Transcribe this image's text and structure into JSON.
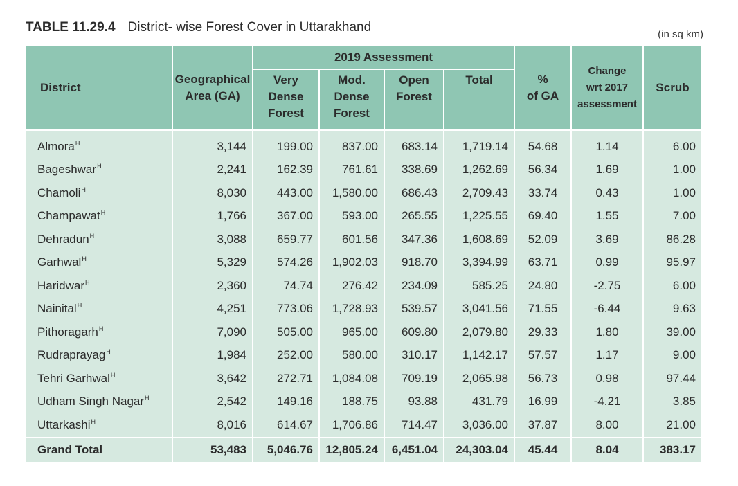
{
  "caption": {
    "number": "TABLE 11.29.4",
    "title": "District- wise Forest Cover in Uttarakhand",
    "unit": "(in sq km)"
  },
  "headers": {
    "district": "District",
    "ga_line1": "Geographical",
    "ga_line2": "Area (GA)",
    "assessment_group": "2019 Assessment",
    "vdf": [
      "Very",
      "Dense",
      "Forest"
    ],
    "mdf": [
      "Mod.",
      "Dense",
      "Forest"
    ],
    "of": [
      "Open",
      "Forest"
    ],
    "total": "Total",
    "pct": [
      "%",
      "of GA"
    ],
    "change": [
      "Change",
      "wrt 2017",
      "assessment"
    ],
    "scrub": "Scrub"
  },
  "rows": [
    {
      "district": "Almora",
      "mark": "H",
      "ga": "3,144",
      "vdf": "199.00",
      "mdf": "837.00",
      "of": "683.14",
      "total": "1,719.14",
      "pct": "54.68",
      "change": "1.14",
      "scrub": "6.00"
    },
    {
      "district": "Bageshwar",
      "mark": "H",
      "ga": "2,241",
      "vdf": "162.39",
      "mdf": "761.61",
      "of": "338.69",
      "total": "1,262.69",
      "pct": "56.34",
      "change": "1.69",
      "scrub": "1.00"
    },
    {
      "district": "Chamoli",
      "mark": "H",
      "ga": "8,030",
      "vdf": "443.00",
      "mdf": "1,580.00",
      "of": "686.43",
      "total": "2,709.43",
      "pct": "33.74",
      "change": "0.43",
      "scrub": "1.00"
    },
    {
      "district": "Champawat",
      "mark": "H",
      "ga": "1,766",
      "vdf": "367.00",
      "mdf": "593.00",
      "of": "265.55",
      "total": "1,225.55",
      "pct": "69.40",
      "change": "1.55",
      "scrub": "7.00"
    },
    {
      "district": "Dehradun",
      "mark": "H",
      "ga": "3,088",
      "vdf": "659.77",
      "mdf": "601.56",
      "of": "347.36",
      "total": "1,608.69",
      "pct": "52.09",
      "change": "3.69",
      "scrub": "86.28"
    },
    {
      "district": "Garhwal",
      "mark": "H",
      "ga": "5,329",
      "vdf": "574.26",
      "mdf": "1,902.03",
      "of": "918.70",
      "total": "3,394.99",
      "pct": "63.71",
      "change": "0.99",
      "scrub": "95.97"
    },
    {
      "district": "Haridwar",
      "mark": "H",
      "ga": "2,360",
      "vdf": "74.74",
      "mdf": "276.42",
      "of": "234.09",
      "total": "585.25",
      "pct": "24.80",
      "change": "-2.75",
      "scrub": "6.00"
    },
    {
      "district": "Nainital",
      "mark": "H",
      "ga": "4,251",
      "vdf": "773.06",
      "mdf": "1,728.93",
      "of": "539.57",
      "total": "3,041.56",
      "pct": "71.55",
      "change": "-6.44",
      "scrub": "9.63"
    },
    {
      "district": "Pithoragarh",
      "mark": "H",
      "ga": "7,090",
      "vdf": "505.00",
      "mdf": "965.00",
      "of": "609.80",
      "total": "2,079.80",
      "pct": "29.33",
      "change": "1.80",
      "scrub": "39.00"
    },
    {
      "district": "Rudraprayag",
      "mark": "H",
      "ga": "1,984",
      "vdf": "252.00",
      "mdf": "580.00",
      "of": "310.17",
      "total": "1,142.17",
      "pct": "57.57",
      "change": "1.17",
      "scrub": "9.00"
    },
    {
      "district": "Tehri Garhwal",
      "mark": "H",
      "ga": "3,642",
      "vdf": "272.71",
      "mdf": "1,084.08",
      "of": "709.19",
      "total": "2,065.98",
      "pct": "56.73",
      "change": "0.98",
      "scrub": "97.44"
    },
    {
      "district": "Udham Singh Nagar",
      "mark": "H",
      "ga": "2,542",
      "vdf": "149.16",
      "mdf": "188.75",
      "of": "93.88",
      "total": "431.79",
      "pct": "16.99",
      "change": "-4.21",
      "scrub": "3.85"
    },
    {
      "district": "Uttarkashi",
      "mark": "H",
      "ga": "8,016",
      "vdf": "614.67",
      "mdf": "1,706.86",
      "of": "714.47",
      "total": "3,036.00",
      "pct": "37.87",
      "change": "8.00",
      "scrub": "21.00"
    }
  ],
  "grand_total": {
    "district": "Grand Total",
    "ga": "53,483",
    "vdf": "5,046.76",
    "mdf": "12,805.24",
    "of": "6,451.04",
    "total": "24,303.04",
    "pct": "45.44",
    "change": "8.04",
    "scrub": "383.17"
  }
}
